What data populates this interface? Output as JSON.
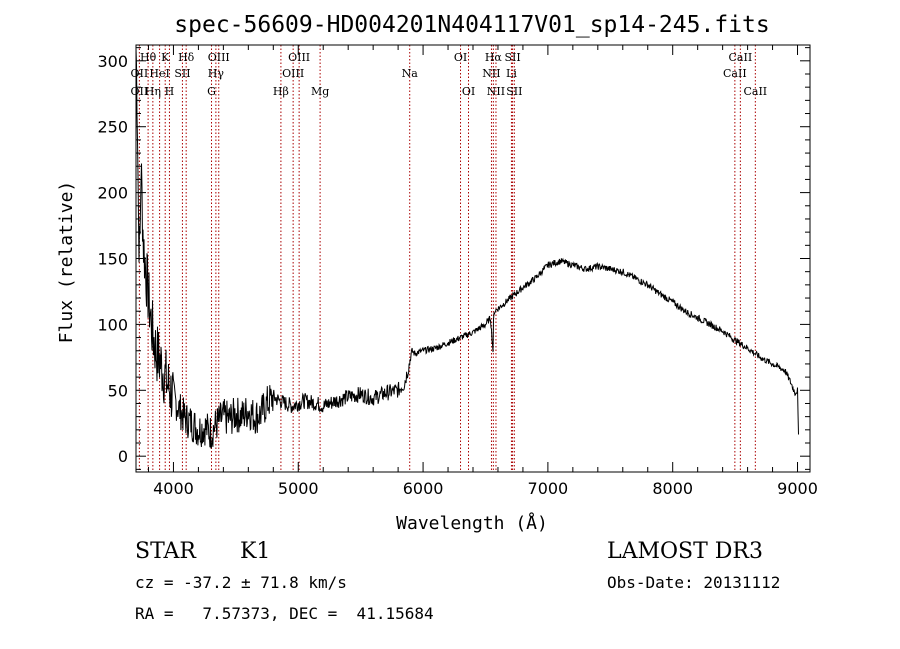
{
  "chart_data": {
    "type": "line",
    "title": "spec-56609-HD004201N404117V01_sp14-245.fits",
    "xlabel": "Wavelength (Å)",
    "ylabel": "Flux (relative)",
    "xlim": [
      3700,
      9100
    ],
    "ylim": [
      -12,
      312
    ],
    "x_ticks": [
      4000,
      5000,
      6000,
      7000,
      8000,
      9000
    ],
    "y_ticks": [
      0,
      50,
      100,
      150,
      200,
      250,
      300
    ],
    "x_tick_labels": [
      "4000",
      "5000",
      "6000",
      "7000",
      "8000",
      "9000"
    ],
    "y_tick_labels": [
      "0",
      "50",
      "100",
      "150",
      "200",
      "250",
      "300"
    ],
    "series": [
      {
        "name": "flux",
        "x": [
          3700,
          3710,
          3720,
          3730,
          3740,
          3760,
          3780,
          3800,
          3830,
          3860,
          3900,
          3950,
          4000,
          4050,
          4100,
          4150,
          4200,
          4250,
          4300,
          4350,
          4400,
          4450,
          4500,
          4550,
          4600,
          4650,
          4700,
          4750,
          4800,
          4850,
          4900,
          4950,
          5000,
          5050,
          5100,
          5150,
          5200,
          5300,
          5400,
          5500,
          5600,
          5700,
          5800,
          5850,
          5890,
          5910,
          5930,
          6000,
          6100,
          6200,
          6300,
          6400,
          6500,
          6540,
          6560,
          6563,
          6570,
          6600,
          6700,
          6800,
          6900,
          7000,
          7100,
          7200,
          7300,
          7400,
          7500,
          7600,
          7700,
          7800,
          7900,
          8000,
          8100,
          8200,
          8300,
          8400,
          8500,
          8600,
          8700,
          8800,
          8900,
          8950,
          8980,
          9000,
          9010
        ],
        "y": [
          310,
          270,
          180,
          150,
          220,
          160,
          140,
          120,
          95,
          80,
          70,
          55,
          45,
          35,
          28,
          25,
          20,
          22,
          18,
          25,
          30,
          28,
          32,
          30,
          35,
          30,
          32,
          40,
          45,
          42,
          40,
          38,
          40,
          42,
          41,
          40,
          38,
          42,
          45,
          47,
          44,
          48,
          50,
          55,
          70,
          80,
          78,
          80,
          82,
          86,
          90,
          94,
          100,
          105,
          80,
          100,
          110,
          112,
          120,
          128,
          135,
          145,
          148,
          145,
          142,
          144,
          142,
          140,
          135,
          130,
          123,
          117,
          110,
          105,
          100,
          95,
          88,
          82,
          75,
          70,
          65,
          55,
          48,
          50,
          5
        ]
      }
    ],
    "line_labels": {
      "row1": [
        {
          "label": "Hθ",
          "wavelength": 3797
        },
        {
          "label": "K",
          "wavelength": 3934
        },
        {
          "label": "Hδ",
          "wavelength": 4102
        },
        {
          "label": "OIII",
          "wavelength": 4363
        },
        {
          "label": "OIII",
          "wavelength": 5007
        },
        {
          "label": "OI",
          "wavelength": 6300
        },
        {
          "label": "Hα",
          "wavelength": 6563
        },
        {
          "label": "SII",
          "wavelength": 6717
        },
        {
          "label": "CaII",
          "wavelength": 8542
        }
      ],
      "row2": [
        {
          "label": "OII",
          "wavelength": 3727
        },
        {
          "label": "HeI",
          "wavelength": 3889
        },
        {
          "label": "SII",
          "wavelength": 4072
        },
        {
          "label": "Hγ",
          "wavelength": 4340
        },
        {
          "label": "OIII",
          "wavelength": 4959
        },
        {
          "label": "Na",
          "wavelength": 5893
        },
        {
          "label": "NII",
          "wavelength": 6548
        },
        {
          "label": "Li",
          "wavelength": 6708
        },
        {
          "label": "CaII",
          "wavelength": 8498
        }
      ],
      "row3": [
        {
          "label": "OII",
          "wavelength": 3727
        },
        {
          "label": "Hη",
          "wavelength": 3835
        },
        {
          "label": "H",
          "wavelength": 3968
        },
        {
          "label": "G",
          "wavelength": 4305
        },
        {
          "label": "Hβ",
          "wavelength": 4861
        },
        {
          "label": "Mg",
          "wavelength": 5175
        },
        {
          "label": "OI",
          "wavelength": 6364
        },
        {
          "label": "NII",
          "wavelength": 6584
        },
        {
          "label": "SII",
          "wavelength": 6731
        },
        {
          "label": "CaII",
          "wavelength": 8662
        }
      ]
    },
    "line_color": "#aa0000",
    "spectrum_color": "#000000"
  },
  "info": {
    "object_class": "STAR",
    "subclass": "K1",
    "survey": "LAMOST DR3",
    "cz": "cz = -37.2 ± 71.8 km/s",
    "obs_date": "Obs-Date: 20131112",
    "coords": "RA =   7.57373, DEC =  41.15684"
  }
}
